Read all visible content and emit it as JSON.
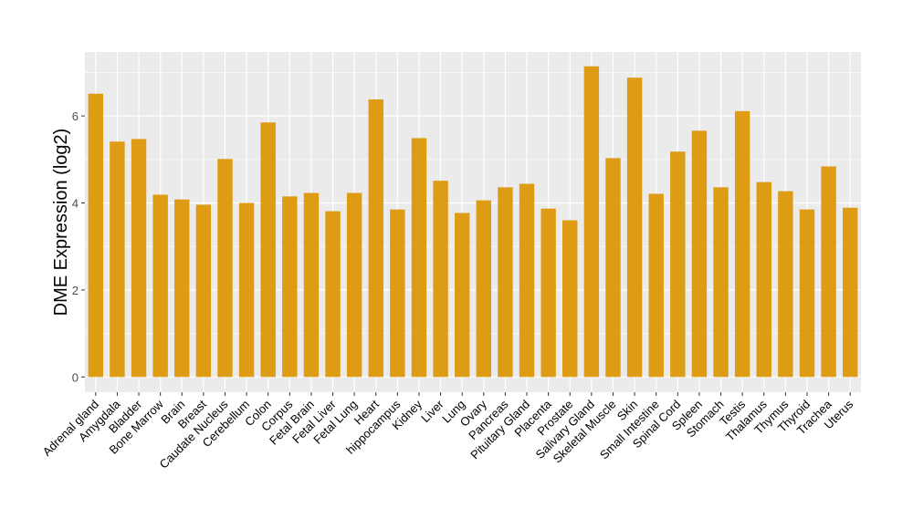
{
  "chart_data": {
    "type": "bar",
    "title": "",
    "xlabel": "",
    "ylabel": "DME Expression (log2)",
    "ylim": [
      -0.35,
      7.47
    ],
    "yticks": [
      0,
      2,
      4,
      6
    ],
    "grid": true,
    "bar_color": "#DE9B14",
    "panel_color": "#EBEBEB",
    "categories": [
      "Adrenal gland",
      "Amygdala",
      "Bladder",
      "Bone Marrow",
      "Brain",
      "Breast",
      "Caudate Nucleus",
      "Cerebellum",
      "Colon",
      "Corpus",
      "Fetal Brain",
      "Fetal Liver",
      "Fetal Lung",
      "Heart",
      "hippocampus",
      "Kidney",
      "Liver",
      "Lung",
      "Ovary",
      "Pancreas",
      "Pituitary Gland",
      "Placenta",
      "Prostate",
      "Salivary Gland",
      "Skeletal Muscle",
      "Skin",
      "Small Intestine",
      "Spinal Cord",
      "Spleen",
      "Stomach",
      "Testis",
      "Thalamus",
      "Thymus",
      "Thyroid",
      "Trachea",
      "Uterus"
    ],
    "values": [
      6.51,
      5.41,
      5.47,
      4.19,
      4.08,
      3.96,
      5.01,
      4.0,
      5.85,
      4.15,
      4.23,
      3.81,
      4.23,
      6.38,
      3.85,
      5.49,
      4.51,
      3.77,
      4.06,
      4.36,
      4.44,
      3.87,
      3.6,
      7.14,
      5.03,
      6.88,
      4.21,
      5.18,
      5.66,
      4.36,
      6.11,
      4.48,
      4.27,
      3.85,
      4.84,
      3.89
    ]
  }
}
